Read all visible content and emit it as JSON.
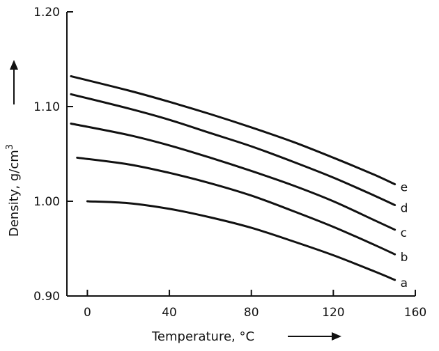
{
  "chart_data": {
    "type": "line",
    "title": "",
    "xlabel": "Temperature, °C",
    "ylabel": "Density, g/cm",
    "ylabel_superscript": "3",
    "xlim": [
      -10,
      160
    ],
    "ylim": [
      0.9,
      1.2
    ],
    "xticks": [
      0,
      40,
      80,
      120,
      160
    ],
    "xtick_labels": [
      "0",
      "40",
      "80",
      "120",
      "160"
    ],
    "yticks": [
      0.9,
      1.0,
      1.1,
      1.2
    ],
    "ytick_labels": [
      "0.90",
      "1.00",
      "1.10",
      "1.20"
    ],
    "grid": false,
    "line_color": "#111111",
    "series": [
      {
        "name": "a",
        "x": [
          0,
          20,
          40,
          60,
          80,
          100,
          120,
          140,
          150
        ],
        "values": [
          1.0,
          0.998,
          0.992,
          0.983,
          0.972,
          0.958,
          0.943,
          0.926,
          0.917
        ]
      },
      {
        "name": "b",
        "x": [
          -5,
          20,
          40,
          60,
          80,
          100,
          120,
          140,
          150
        ],
        "values": [
          1.046,
          1.039,
          1.03,
          1.019,
          1.006,
          0.99,
          0.973,
          0.954,
          0.944
        ]
      },
      {
        "name": "c",
        "x": [
          -8,
          20,
          40,
          60,
          80,
          100,
          120,
          140,
          150
        ],
        "values": [
          1.082,
          1.07,
          1.059,
          1.046,
          1.032,
          1.017,
          1.0,
          0.98,
          0.97
        ]
      },
      {
        "name": "d",
        "x": [
          -8,
          20,
          40,
          60,
          80,
          100,
          120,
          140,
          150
        ],
        "values": [
          1.113,
          1.098,
          1.086,
          1.072,
          1.058,
          1.042,
          1.025,
          1.006,
          0.996
        ]
      },
      {
        "name": "e",
        "x": [
          -8,
          20,
          40,
          60,
          80,
          100,
          120,
          140,
          150
        ],
        "values": [
          1.132,
          1.117,
          1.105,
          1.092,
          1.078,
          1.063,
          1.046,
          1.028,
          1.018
        ]
      }
    ]
  }
}
